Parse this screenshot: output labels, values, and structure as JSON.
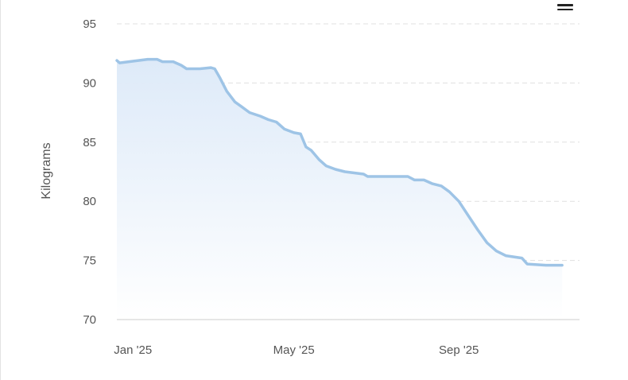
{
  "chart_data": {
    "type": "area",
    "title": "",
    "xlabel": "",
    "ylabel": "Kilograms",
    "ylim": [
      70,
      95
    ],
    "xlim": [
      "2024-12-20",
      "2025-11-30"
    ],
    "y_ticks": [
      70,
      75,
      80,
      85,
      90,
      95
    ],
    "x_ticks": [
      {
        "date": "2025-01-01",
        "label": "Jan '25"
      },
      {
        "date": "2025-05-01",
        "label": "May '25"
      },
      {
        "date": "2025-09-01",
        "label": "Sep '25"
      }
    ],
    "grid": true,
    "legend": "none",
    "colors": {
      "line": "#9ec4e6",
      "fill_top": "#dce9f8",
      "fill_bottom": "#ffffff",
      "grid": "#e0e0e0",
      "axis": "#cccccc"
    },
    "series": [
      {
        "points": [
          [
            "2024-12-20",
            91.9
          ],
          [
            "2024-12-22",
            91.7
          ],
          [
            "2024-12-29",
            91.8
          ],
          [
            "2025-01-05",
            91.9
          ],
          [
            "2025-01-12",
            92.0
          ],
          [
            "2025-01-19",
            92.0
          ],
          [
            "2025-01-23",
            91.8
          ],
          [
            "2025-01-31",
            91.8
          ],
          [
            "2025-02-06",
            91.5
          ],
          [
            "2025-02-10",
            91.2
          ],
          [
            "2025-02-20",
            91.2
          ],
          [
            "2025-02-28",
            91.3
          ],
          [
            "2025-03-03",
            91.2
          ],
          [
            "2025-03-07",
            90.4
          ],
          [
            "2025-03-12",
            89.3
          ],
          [
            "2025-03-18",
            88.4
          ],
          [
            "2025-03-23",
            88.0
          ],
          [
            "2025-03-29",
            87.5
          ],
          [
            "2025-04-06",
            87.2
          ],
          [
            "2025-04-12",
            86.9
          ],
          [
            "2025-04-18",
            86.7
          ],
          [
            "2025-04-24",
            86.1
          ],
          [
            "2025-05-01",
            85.8
          ],
          [
            "2025-05-06",
            85.7
          ],
          [
            "2025-05-10",
            84.6
          ],
          [
            "2025-05-14",
            84.3
          ],
          [
            "2025-05-20",
            83.5
          ],
          [
            "2025-05-25",
            83.0
          ],
          [
            "2025-06-01",
            82.7
          ],
          [
            "2025-06-08",
            82.5
          ],
          [
            "2025-06-15",
            82.4
          ],
          [
            "2025-06-22",
            82.3
          ],
          [
            "2025-06-25",
            82.1
          ],
          [
            "2025-07-05",
            82.1
          ],
          [
            "2025-07-15",
            82.1
          ],
          [
            "2025-07-25",
            82.1
          ],
          [
            "2025-07-30",
            81.8
          ],
          [
            "2025-08-06",
            81.8
          ],
          [
            "2025-08-12",
            81.5
          ],
          [
            "2025-08-19",
            81.3
          ],
          [
            "2025-08-25",
            80.8
          ],
          [
            "2025-09-01",
            80.0
          ],
          [
            "2025-09-08",
            78.8
          ],
          [
            "2025-09-15",
            77.6
          ],
          [
            "2025-09-22",
            76.5
          ],
          [
            "2025-09-29",
            75.8
          ],
          [
            "2025-10-06",
            75.4
          ],
          [
            "2025-10-12",
            75.3
          ],
          [
            "2025-10-18",
            75.2
          ],
          [
            "2025-10-22",
            74.7
          ],
          [
            "2025-11-05",
            74.6
          ],
          [
            "2025-11-17",
            74.6
          ]
        ]
      }
    ]
  },
  "menu": {
    "icon": "hamburger-menu-icon"
  }
}
